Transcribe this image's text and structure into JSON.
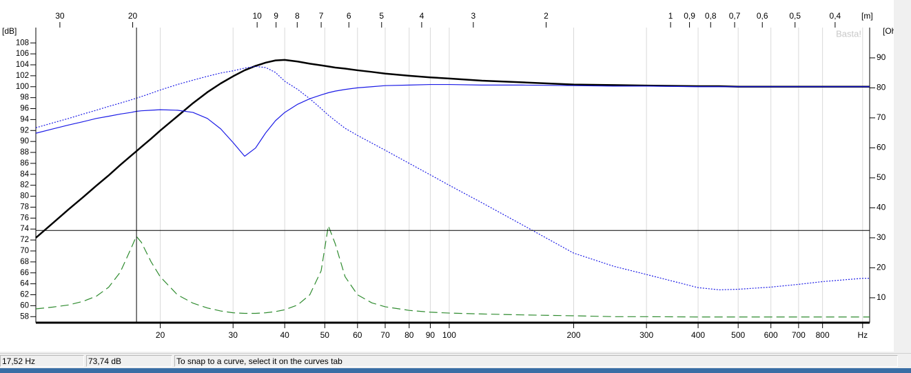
{
  "chart_data": {
    "type": "line",
    "watermark": "Basta!",
    "y_label": "[dB]",
    "y2_label": "[Ohm]",
    "x2_label": "[m]",
    "xlim": [
      10,
      1040
    ],
    "xscale": "log",
    "xticks": [
      20,
      30,
      40,
      50,
      60,
      70,
      80,
      90,
      100,
      200,
      300,
      400,
      500,
      600,
      700,
      800,
      {
        "value": 1000,
        "label": "Hz"
      }
    ],
    "x2lim": [
      34.3,
      0.33
    ],
    "x2ticks": [
      30,
      20,
      10,
      9,
      8,
      7,
      6,
      5,
      4,
      3,
      2,
      1,
      {
        "value": 0.9,
        "label": "0,9"
      },
      {
        "value": 0.8,
        "label": "0,8"
      },
      {
        "value": 0.7,
        "label": "0,7"
      },
      {
        "value": 0.6,
        "label": "0,6"
      },
      {
        "value": 0.5,
        "label": "0,5"
      },
      {
        "value": 0.4,
        "label": "0,4"
      }
    ],
    "ylim": [
      56.9,
      110.8
    ],
    "yticks": [
      58,
      60,
      62,
      64,
      66,
      68,
      70,
      72,
      74,
      76,
      78,
      80,
      82,
      84,
      86,
      88,
      90,
      92,
      94,
      96,
      98,
      100,
      102,
      104,
      106,
      108
    ],
    "y2lim": [
      1.7,
      100.1
    ],
    "y2ticks": [
      10,
      20,
      30,
      40,
      50,
      60,
      70,
      80,
      90
    ],
    "grid": true,
    "cursor": {
      "x": 17.52,
      "y": 73.74
    },
    "x": [
      10,
      11,
      12,
      13,
      14,
      15,
      16,
      17,
      17.5,
      18,
      19,
      20,
      22,
      24,
      26,
      28,
      30,
      32,
      34,
      36,
      38,
      40,
      43,
      46,
      49,
      51,
      53,
      56,
      60,
      65,
      70,
      80,
      90,
      100,
      120,
      150,
      200,
      250,
      300,
      400,
      450,
      500,
      600,
      700,
      800,
      1000,
      1040
    ],
    "series": [
      {
        "color": "#000000",
        "width": 2.5,
        "dash": "solid",
        "values": [
          72.4,
          75.1,
          77.6,
          79.8,
          81.9,
          83.8,
          85.7,
          87.4,
          88.2,
          89.0,
          90.5,
          92.0,
          94.6,
          97.0,
          99.0,
          100.6,
          101.9,
          103.0,
          103.8,
          104.4,
          104.8,
          104.9,
          104.6,
          104.2,
          103.9,
          103.7,
          103.5,
          103.3,
          103.0,
          102.7,
          102.4,
          102.0,
          101.7,
          101.5,
          101.1,
          100.8,
          100.4,
          100.3,
          100.2,
          100.1,
          100.1,
          100,
          100,
          100,
          100,
          100,
          100
        ]
      },
      {
        "color": "#1a1ae6",
        "width": 1.2,
        "dash": "solid",
        "values": [
          91.5,
          92.3,
          93.0,
          93.6,
          94.2,
          94.6,
          95.0,
          95.3,
          95.5,
          95.6,
          95.7,
          95.8,
          95.7,
          95.3,
          94.2,
          92.3,
          89.8,
          87.3,
          88.8,
          91.6,
          93.8,
          95.3,
          96.8,
          97.8,
          98.5,
          98.9,
          99.2,
          99.5,
          99.8,
          100.0,
          100.2,
          100.3,
          100.4,
          100.4,
          100.3,
          100.3,
          100.2,
          100.1,
          100.1,
          100,
          100,
          100,
          100,
          100,
          100,
          100,
          100
        ]
      },
      {
        "color": "#1a1ae6",
        "width": 1.2,
        "dash": "dotted",
        "values": [
          92.5,
          93.4,
          94.2,
          95.0,
          95.7,
          96.4,
          97.0,
          97.6,
          97.9,
          98.2,
          98.8,
          99.4,
          100.4,
          101.2,
          101.9,
          102.5,
          102.9,
          103.4,
          103.7,
          103.5,
          102.6,
          101.0,
          99.5,
          97.8,
          96.0,
          94.8,
          93.8,
          92.4,
          91.1,
          89.7,
          88.4,
          86.0,
          83.9,
          82.0,
          78.8,
          74.8,
          69.6,
          67.2,
          65.7,
          63.3,
          62.9,
          63.0,
          63.4,
          63.9,
          64.4,
          65.0,
          65.0
        ]
      },
      {
        "color": "#2e8b2e",
        "width": 1.2,
        "dash": "dashed",
        "axis": "y2",
        "values": [
          6.3,
          6.9,
          7.6,
          8.8,
          10.5,
          13.5,
          18.5,
          26.5,
          30.5,
          28.5,
          22,
          17,
          11,
          8.2,
          6.6,
          5.6,
          5.0,
          4.8,
          4.8,
          5.0,
          5.4,
          6.0,
          7.6,
          11.0,
          19.0,
          34.0,
          28.0,
          17.0,
          11.0,
          8.3,
          7.0,
          5.8,
          5.2,
          4.9,
          4.6,
          4.3,
          4.0,
          3.7,
          3.7,
          3.6,
          3.6,
          3.6,
          3.6,
          3.6,
          3.6,
          3.6,
          3.6
        ]
      }
    ]
  },
  "status_bar": [
    "17,52 Hz",
    "73,74 dB",
    "To snap to a curve, select it on the curves tab"
  ]
}
